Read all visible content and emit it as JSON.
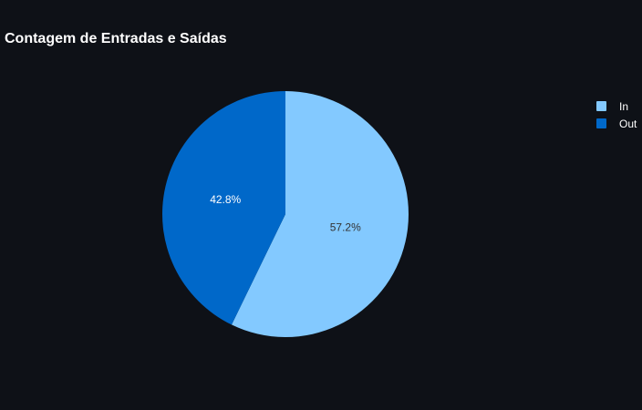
{
  "chart_data": {
    "type": "pie",
    "title": "Contagem de Entradas e Saídas",
    "legend_position": "top-right",
    "slices": [
      {
        "label": "In",
        "value": 57.2,
        "display": "57.2%",
        "color": "#83c9ff",
        "text_color": "#333333"
      },
      {
        "label": "Out",
        "value": 42.8,
        "display": "42.8%",
        "color": "#0068c9",
        "text_color": "#ffffff"
      }
    ]
  }
}
